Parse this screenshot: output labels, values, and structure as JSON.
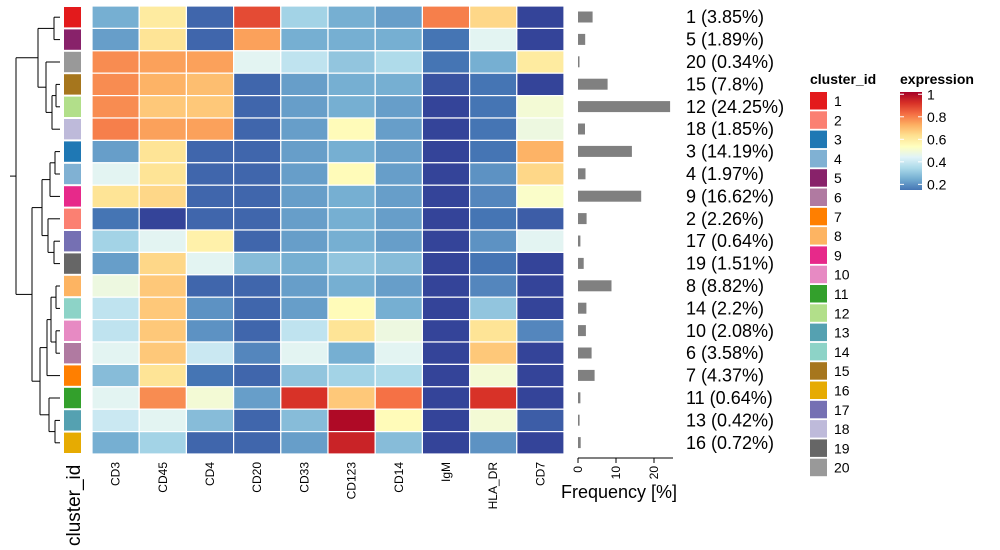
{
  "chart_data": {
    "type": "heatmap",
    "title": "",
    "columns": [
      "CD3",
      "CD45",
      "CD4",
      "CD20",
      "CD33",
      "CD123",
      "CD14",
      "IgM",
      "HLA_DR",
      "CD7"
    ],
    "rows": [
      {
        "cluster": "1",
        "label": "1 (3.85%)",
        "freq": 3.85,
        "values": [
          0.25,
          0.6,
          0.12,
          0.88,
          0.33,
          0.25,
          0.22,
          0.8,
          0.65,
          0.05
        ]
      },
      {
        "cluster": "5",
        "label": "5 (1.89%)",
        "freq": 1.89,
        "values": [
          0.22,
          0.62,
          0.12,
          0.75,
          0.25,
          0.25,
          0.25,
          0.15,
          0.45,
          0.05
        ]
      },
      {
        "cluster": "20",
        "label": "20 (0.34%)",
        "freq": 0.34,
        "values": [
          0.78,
          0.75,
          0.75,
          0.45,
          0.38,
          0.3,
          0.35,
          0.15,
          0.25,
          0.6
        ]
      },
      {
        "cluster": "15",
        "label": "15 (7.8%)",
        "freq": 7.8,
        "values": [
          0.78,
          0.72,
          0.7,
          0.12,
          0.22,
          0.25,
          0.25,
          0.08,
          0.15,
          0.05
        ]
      },
      {
        "cluster": "12",
        "label": "12 (24.25%)",
        "freq": 24.25,
        "values": [
          0.78,
          0.68,
          0.68,
          0.12,
          0.22,
          0.25,
          0.22,
          0.05,
          0.15,
          0.5
        ]
      },
      {
        "cluster": "18",
        "label": "18 (1.85%)",
        "freq": 1.85,
        "values": [
          0.8,
          0.75,
          0.75,
          0.12,
          0.22,
          0.55,
          0.22,
          0.05,
          0.15,
          0.48
        ]
      },
      {
        "cluster": "3",
        "label": "3 (14.19%)",
        "freq": 14.19,
        "values": [
          0.22,
          0.62,
          0.12,
          0.12,
          0.22,
          0.25,
          0.22,
          0.05,
          0.15,
          0.72
        ]
      },
      {
        "cluster": "4",
        "label": "4 (1.97%)",
        "freq": 1.97,
        "values": [
          0.45,
          0.62,
          0.12,
          0.12,
          0.22,
          0.55,
          0.22,
          0.05,
          0.2,
          0.65
        ]
      },
      {
        "cluster": "9",
        "label": "9 (16.62%)",
        "freq": 16.62,
        "values": [
          0.62,
          0.65,
          0.12,
          0.12,
          0.22,
          0.25,
          0.22,
          0.05,
          0.18,
          0.52
        ]
      },
      {
        "cluster": "2",
        "label": "2 (2.26%)",
        "freq": 2.26,
        "values": [
          0.15,
          0.05,
          0.12,
          0.12,
          0.22,
          0.25,
          0.22,
          0.05,
          0.15,
          0.1
        ]
      },
      {
        "cluster": "17",
        "label": "17 (0.64%)",
        "freq": 0.64,
        "values": [
          0.33,
          0.45,
          0.58,
          0.12,
          0.22,
          0.25,
          0.22,
          0.05,
          0.2,
          0.45
        ]
      },
      {
        "cluster": "19",
        "label": "19 (1.51%)",
        "freq": 1.51,
        "values": [
          0.22,
          0.65,
          0.45,
          0.28,
          0.25,
          0.3,
          0.28,
          0.05,
          0.15,
          0.05
        ]
      },
      {
        "cluster": "8",
        "label": "8 (8.82%)",
        "freq": 8.82,
        "values": [
          0.48,
          0.68,
          0.12,
          0.12,
          0.22,
          0.25,
          0.22,
          0.05,
          0.18,
          0.05
        ]
      },
      {
        "cluster": "14",
        "label": "14 (2.2%)",
        "freq": 2.2,
        "values": [
          0.38,
          0.68,
          0.2,
          0.12,
          0.22,
          0.55,
          0.25,
          0.05,
          0.3,
          0.05
        ]
      },
      {
        "cluster": "10",
        "label": "10 (2.08%)",
        "freq": 2.08,
        "values": [
          0.38,
          0.68,
          0.2,
          0.12,
          0.38,
          0.62,
          0.48,
          0.05,
          0.62,
          0.18
        ]
      },
      {
        "cluster": "6",
        "label": "6 (3.58%)",
        "freq": 3.58,
        "values": [
          0.45,
          0.68,
          0.4,
          0.18,
          0.45,
          0.25,
          0.45,
          0.05,
          0.68,
          0.05
        ]
      },
      {
        "cluster": "7",
        "label": "7 (4.37%)",
        "freq": 4.37,
        "values": [
          0.28,
          0.62,
          0.15,
          0.12,
          0.3,
          0.33,
          0.35,
          0.05,
          0.5,
          0.05
        ]
      },
      {
        "cluster": "11",
        "label": "11 (0.64%)",
        "freq": 0.64,
        "values": [
          0.45,
          0.78,
          0.5,
          0.22,
          0.92,
          0.68,
          0.82,
          0.05,
          0.92,
          0.05
        ]
      },
      {
        "cluster": "13",
        "label": "13 (0.42%)",
        "freq": 0.42,
        "values": [
          0.4,
          0.45,
          0.28,
          0.12,
          0.28,
          1.0,
          0.55,
          0.05,
          0.5,
          0.1
        ]
      },
      {
        "cluster": "16",
        "label": "16 (0.72%)",
        "freq": 0.72,
        "values": [
          0.25,
          0.33,
          0.12,
          0.12,
          0.22,
          0.95,
          0.28,
          0.05,
          0.2,
          0.05
        ]
      }
    ],
    "cluster_colors": {
      "1": "#e31a1c",
      "2": "#fb8072",
      "3": "#1f78b4",
      "4": "#80b1d3",
      "5": "#88226a",
      "6": "#b07aa1",
      "7": "#ff7f00",
      "8": "#fdb462",
      "9": "#e7298a",
      "10": "#e78ac3",
      "11": "#33a02c",
      "12": "#b2df8a",
      "13": "#55a1b1",
      "14": "#8dd3c7",
      "15": "#a6761d",
      "16": "#e6ab02",
      "17": "#7570b3",
      "18": "#bebada",
      "19": "#666666",
      "20": "#999999"
    },
    "bar_axis": {
      "label": "Frequency [%]",
      "min": 0,
      "max": 25,
      "ticks": [
        0,
        10,
        20
      ]
    },
    "row_annotation_label": "cluster_id",
    "cluster_legend": {
      "title": "cluster_id",
      "items": [
        "1",
        "2",
        "3",
        "4",
        "5",
        "6",
        "7",
        "8",
        "9",
        "10",
        "11",
        "12",
        "13",
        "14",
        "15",
        "16",
        "17",
        "18",
        "19",
        "20"
      ]
    },
    "expression_legend": {
      "title": "expression",
      "ticks": [
        0.2,
        0.4,
        0.6,
        0.8,
        1
      ],
      "range": [
        0.15,
        1.02
      ],
      "colormap": [
        "#4575b4",
        "#74add1",
        "#abd9e9",
        "#e0f3f8",
        "#ffffbf",
        "#fee090",
        "#fdae61",
        "#f46d43",
        "#d73027",
        "#a50026"
      ],
      "colormap_low": "#2c2c8c"
    }
  }
}
